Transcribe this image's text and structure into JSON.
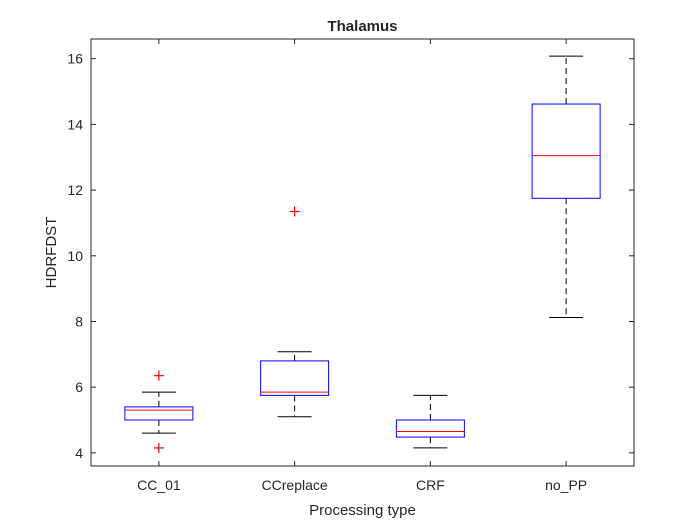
{
  "chart_data": {
    "type": "box",
    "title": "Thalamus",
    "xlabel": "Processing type",
    "ylabel": "HDRFDST",
    "ylim": [
      3.6,
      16.6
    ],
    "yticks": [
      4,
      6,
      8,
      10,
      12,
      14,
      16
    ],
    "categories": [
      "CC_01",
      "CCreplace",
      "CRF",
      "no_PP"
    ],
    "boxes": [
      {
        "category": "CC_01",
        "whisker_low": 4.6,
        "q1": 5.0,
        "median": 5.3,
        "q3": 5.4,
        "whisker_high": 5.85,
        "outliers": [
          4.15,
          6.35
        ]
      },
      {
        "category": "CCreplace",
        "whisker_low": 5.1,
        "q1": 5.75,
        "median": 5.85,
        "q3": 6.8,
        "whisker_high": 7.08,
        "outliers": [
          11.35
        ]
      },
      {
        "category": "CRF",
        "whisker_low": 4.15,
        "q1": 4.48,
        "median": 4.65,
        "q3": 5.0,
        "whisker_high": 5.75,
        "outliers": []
      },
      {
        "category": "no_PP",
        "whisker_low": 8.12,
        "q1": 11.75,
        "median": 13.05,
        "q3": 14.62,
        "whisker_high": 16.08,
        "outliers": []
      }
    ],
    "grid": false,
    "colors": {
      "box": "#0000ff",
      "median": "#ff0000",
      "whisker": "#000000",
      "outlier": "#ff0000",
      "axis": "#262626"
    }
  }
}
